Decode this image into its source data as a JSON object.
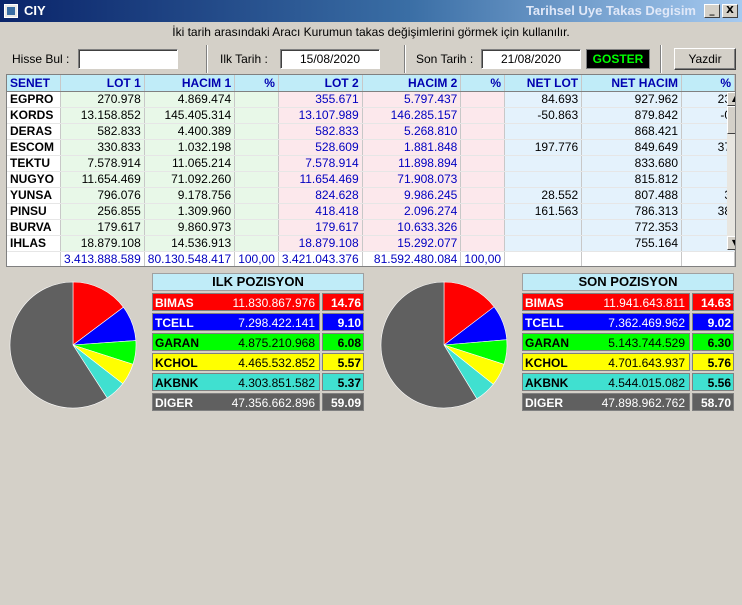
{
  "window": {
    "title": "CIY",
    "subtitle": "Tarihsel Uye Takas Degisim",
    "min_glyph": "_",
    "close_glyph": "X"
  },
  "info_text": "İki tarih arasındaki  Aracı Kurumun takas değişimlerini görmek için kullanılır.",
  "controls": {
    "hisse_label": "Hisse Bul :",
    "hisse_value": "",
    "ilk_label": "Ilk Tarih :",
    "ilk_value": "15/08/2020",
    "son_label": "Son Tarih :",
    "son_value": "21/08/2020",
    "goster": "GOSTER",
    "yazdir": "Yazdir"
  },
  "grid": {
    "headers": [
      "SENET",
      "LOT 1",
      "HACIM 1",
      "%",
      "LOT 2",
      "HACIM 2",
      "%",
      "NET LOT",
      "NET HACIM",
      "%"
    ],
    "rows": [
      [
        "EGPRO",
        "270.978",
        "4.869.474",
        "",
        "355.671",
        "5.797.437",
        "",
        "84.693",
        "927.962",
        "23"
      ],
      [
        "KORDS",
        "13.158.852",
        "145.405.314",
        "",
        "13.107.989",
        "146.285.157",
        "",
        "-50.863",
        "879.842",
        "-0"
      ],
      [
        "DERAS",
        "582.833",
        "4.400.389",
        "",
        "582.833",
        "5.268.810",
        "",
        "",
        "868.421",
        ""
      ],
      [
        "ESCOM",
        "330.833",
        "1.032.198",
        "",
        "528.609",
        "1.881.848",
        "",
        "197.776",
        "849.649",
        "37"
      ],
      [
        "TEKTU",
        "7.578.914",
        "11.065.214",
        "",
        "7.578.914",
        "11.898.894",
        "",
        "",
        "833.680",
        ""
      ],
      [
        "NUGYO",
        "11.654.469",
        "71.092.260",
        "",
        "11.654.469",
        "71.908.073",
        "",
        "",
        "815.812",
        ""
      ],
      [
        "YUNSA",
        "796.076",
        "9.178.756",
        "",
        "824.628",
        "9.986.245",
        "",
        "28.552",
        "807.488",
        "3"
      ],
      [
        "PINSU",
        "256.855",
        "1.309.960",
        "",
        "418.418",
        "2.096.274",
        "",
        "161.563",
        "786.313",
        "38"
      ],
      [
        "BURVA",
        "179.617",
        "9.860.973",
        "",
        "179.617",
        "10.633.326",
        "",
        "",
        "772.353",
        ""
      ],
      [
        "IHLAS",
        "18.879.108",
        "14.536.913",
        "",
        "18.879.108",
        "15.292.077",
        "",
        "",
        "755.164",
        ""
      ]
    ],
    "totals": [
      "",
      "3.413.888.589",
      "80.130.548.417",
      "100,00",
      "3.421.043.376",
      "81.592.480.084",
      "100,00",
      "",
      "",
      ""
    ]
  },
  "ilk_pozisyon": {
    "title": "ILK POZISYON",
    "rows": [
      {
        "name": "BIMAS",
        "value": "11.830.867.976",
        "pct": "14.76",
        "pct_num": 14.76,
        "bg": "#ff0000",
        "fg": "#ffffff"
      },
      {
        "name": "TCELL",
        "value": "7.298.422.141",
        "pct": "9.10",
        "pct_num": 9.1,
        "bg": "#0000ff",
        "fg": "#ffffff"
      },
      {
        "name": "GARAN",
        "value": "4.875.210.968",
        "pct": "6.08",
        "pct_num": 6.08,
        "bg": "#00ff00",
        "fg": "#000000"
      },
      {
        "name": "KCHOL",
        "value": "4.465.532.852",
        "pct": "5.57",
        "pct_num": 5.57,
        "bg": "#ffff00",
        "fg": "#000000"
      },
      {
        "name": "AKBNK",
        "value": "4.303.851.582",
        "pct": "5.37",
        "pct_num": 5.37,
        "bg": "#40e0d0",
        "fg": "#000000"
      },
      {
        "name": "DIGER",
        "value": "47.356.662.896",
        "pct": "59.09",
        "pct_num": 59.09,
        "bg": "#606060",
        "fg": "#ffffff"
      }
    ]
  },
  "son_pozisyon": {
    "title": "SON POZISYON",
    "rows": [
      {
        "name": "BIMAS",
        "value": "11.941.643.811",
        "pct": "14.63",
        "pct_num": 14.63,
        "bg": "#ff0000",
        "fg": "#ffffff"
      },
      {
        "name": "TCELL",
        "value": "7.362.469.962",
        "pct": "9.02",
        "pct_num": 9.02,
        "bg": "#0000ff",
        "fg": "#ffffff"
      },
      {
        "name": "GARAN",
        "value": "5.143.744.529",
        "pct": "6.30",
        "pct_num": 6.3,
        "bg": "#00ff00",
        "fg": "#000000"
      },
      {
        "name": "KCHOL",
        "value": "4.701.643.937",
        "pct": "5.76",
        "pct_num": 5.76,
        "bg": "#ffff00",
        "fg": "#000000"
      },
      {
        "name": "AKBNK",
        "value": "4.544.015.082",
        "pct": "5.56",
        "pct_num": 5.56,
        "bg": "#40e0d0",
        "fg": "#000000"
      },
      {
        "name": "DIGER",
        "value": "47.898.962.762",
        "pct": "58.70",
        "pct_num": 58.7,
        "bg": "#606060",
        "fg": "#ffffff"
      }
    ]
  }
}
